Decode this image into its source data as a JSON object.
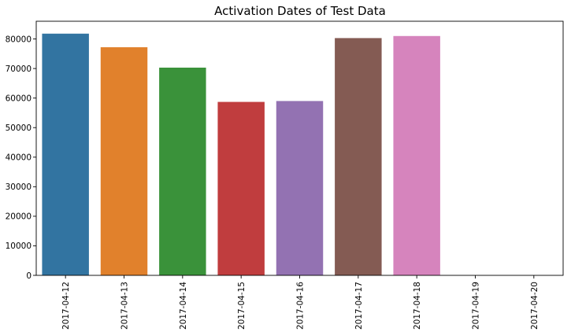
{
  "chart_data": {
    "type": "bar",
    "title": "Activation Dates of Test Data",
    "xlabel": "",
    "ylabel": "",
    "categories": [
      "2017-04-12",
      "2017-04-13",
      "2017-04-14",
      "2017-04-15",
      "2017-04-16",
      "2017-04-17",
      "2017-04-18",
      "2017-04-19",
      "2017-04-20"
    ],
    "values": [
      81800,
      77200,
      70300,
      58700,
      59000,
      80300,
      81000,
      0,
      0
    ],
    "colors": [
      "#3274a1",
      "#e1812c",
      "#3a923a",
      "#c03d3e",
      "#9372b2",
      "#845b53",
      "#d684bd",
      "#7f7f7f",
      "#a9aa35"
    ],
    "ylim": [
      0,
      86000
    ],
    "yticks": [
      0,
      10000,
      20000,
      30000,
      40000,
      50000,
      60000,
      70000,
      80000
    ],
    "grid": false,
    "legend": "none"
  }
}
